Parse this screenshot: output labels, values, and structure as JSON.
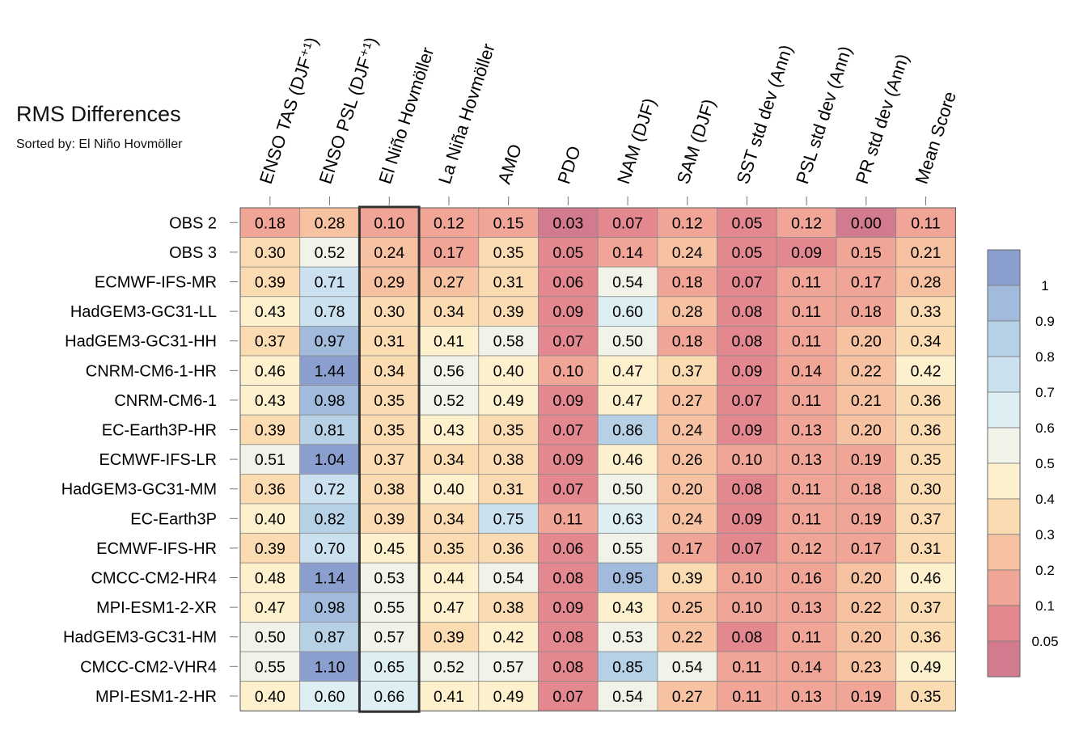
{
  "chart_data": {
    "type": "heatmap",
    "title": "RMS Differences",
    "subtitle": "Sorted by: El Niño Hovmöller",
    "columns": [
      "ENSO TAS (DJF⁺¹)",
      "ENSO PSL (DJF⁺¹)",
      "El Niño Hovmöller",
      "La Niña Hovmöller",
      "AMO",
      "PDO",
      "NAM (DJF)",
      "SAM (DJF)",
      "SST std dev (Ann)",
      "PSL std dev (Ann)",
      "PR std dev (Ann)",
      "Mean Score"
    ],
    "rows": [
      "OBS 2",
      "OBS 3",
      "ECMWF-IFS-MR",
      "HadGEM3-GC31-LL",
      "HadGEM3-GC31-HH",
      "CNRM-CM6-1-HR",
      "CNRM-CM6-1",
      "EC-Earth3P-HR",
      "ECMWF-IFS-LR",
      "HadGEM3-GC31-MM",
      "EC-Earth3P",
      "ECMWF-IFS-HR",
      "CMCC-CM2-HR4",
      "MPI-ESM1-2-XR",
      "HadGEM3-GC31-HM",
      "CMCC-CM2-VHR4",
      "MPI-ESM1-2-HR"
    ],
    "values": [
      [
        "0.18",
        "0.28",
        "0.10",
        "0.12",
        "0.15",
        "0.03",
        "0.07",
        "0.12",
        "0.05",
        "0.12",
        "0.00",
        "0.11"
      ],
      [
        "0.30",
        "0.52",
        "0.24",
        "0.17",
        "0.35",
        "0.05",
        "0.14",
        "0.24",
        "0.05",
        "0.09",
        "0.15",
        "0.21"
      ],
      [
        "0.39",
        "0.71",
        "0.29",
        "0.27",
        "0.31",
        "0.06",
        "0.54",
        "0.18",
        "0.07",
        "0.11",
        "0.17",
        "0.28"
      ],
      [
        "0.43",
        "0.78",
        "0.30",
        "0.34",
        "0.39",
        "0.09",
        "0.60",
        "0.28",
        "0.08",
        "0.11",
        "0.18",
        "0.33"
      ],
      [
        "0.37",
        "0.97",
        "0.31",
        "0.41",
        "0.58",
        "0.07",
        "0.50",
        "0.18",
        "0.08",
        "0.11",
        "0.20",
        "0.34"
      ],
      [
        "0.46",
        "1.44",
        "0.34",
        "0.56",
        "0.40",
        "0.10",
        "0.47",
        "0.37",
        "0.09",
        "0.14",
        "0.22",
        "0.42"
      ],
      [
        "0.43",
        "0.98",
        "0.35",
        "0.52",
        "0.49",
        "0.09",
        "0.47",
        "0.27",
        "0.07",
        "0.11",
        "0.21",
        "0.36"
      ],
      [
        "0.39",
        "0.81",
        "0.35",
        "0.43",
        "0.35",
        "0.07",
        "0.86",
        "0.24",
        "0.09",
        "0.13",
        "0.20",
        "0.36"
      ],
      [
        "0.51",
        "1.04",
        "0.37",
        "0.34",
        "0.38",
        "0.09",
        "0.46",
        "0.26",
        "0.10",
        "0.13",
        "0.19",
        "0.35"
      ],
      [
        "0.36",
        "0.72",
        "0.38",
        "0.40",
        "0.31",
        "0.07",
        "0.50",
        "0.20",
        "0.08",
        "0.11",
        "0.18",
        "0.30"
      ],
      [
        "0.40",
        "0.82",
        "0.39",
        "0.34",
        "0.75",
        "0.11",
        "0.63",
        "0.24",
        "0.09",
        "0.11",
        "0.19",
        "0.37"
      ],
      [
        "0.39",
        "0.70",
        "0.45",
        "0.35",
        "0.36",
        "0.06",
        "0.55",
        "0.17",
        "0.07",
        "0.12",
        "0.17",
        "0.31"
      ],
      [
        "0.48",
        "1.14",
        "0.53",
        "0.44",
        "0.54",
        "0.08",
        "0.95",
        "0.39",
        "0.10",
        "0.16",
        "0.20",
        "0.46"
      ],
      [
        "0.47",
        "0.98",
        "0.55",
        "0.47",
        "0.38",
        "0.09",
        "0.43",
        "0.25",
        "0.10",
        "0.13",
        "0.22",
        "0.37"
      ],
      [
        "0.50",
        "0.87",
        "0.57",
        "0.39",
        "0.42",
        "0.08",
        "0.53",
        "0.22",
        "0.08",
        "0.11",
        "0.20",
        "0.36"
      ],
      [
        "0.55",
        "1.10",
        "0.65",
        "0.52",
        "0.57",
        "0.08",
        "0.85",
        "0.54",
        "0.11",
        "0.14",
        "0.23",
        "0.49"
      ],
      [
        "0.40",
        "0.60",
        "0.66",
        "0.41",
        "0.49",
        "0.07",
        "0.54",
        "0.27",
        "0.11",
        "0.13",
        "0.19",
        "0.35"
      ]
    ],
    "highlighted_column": "El Niño Hovmöller",
    "colorbar": {
      "tick_labels": [
        "1",
        "0.9",
        "0.8",
        "0.7",
        "0.6",
        "0.5",
        "0.4",
        "0.3",
        "0.2",
        "0.1",
        "0.05"
      ],
      "levels": [
        0.05,
        0.1,
        0.2,
        0.3,
        0.4,
        0.5,
        0.6,
        0.7,
        0.8,
        0.9,
        1
      ],
      "colors": [
        "#d27a8e",
        "#e48890",
        "#f0a597",
        "#f6c2a1",
        "#fbdcb2",
        "#fdf0cc",
        "#f1f2e8",
        "#deeff4",
        "#cbe1ef",
        "#b6d0e6",
        "#a2bbdc",
        "#8b9fcf"
      ]
    }
  }
}
